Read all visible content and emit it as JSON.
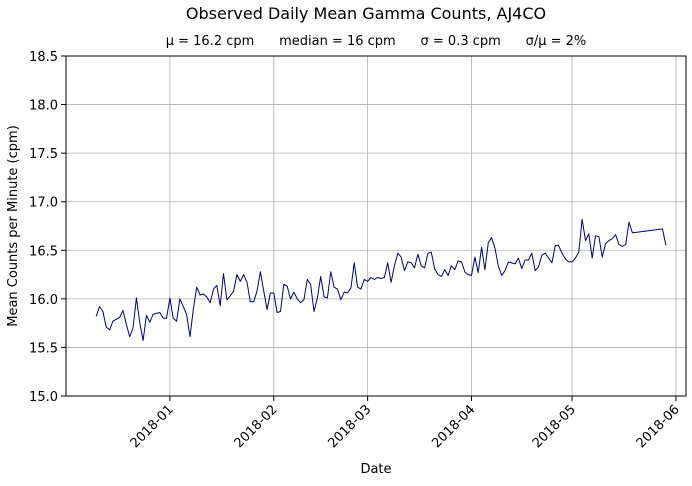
{
  "chart_data": {
    "type": "line",
    "title": "Observed Daily Mean Gamma Counts, AJ4CO",
    "subtitle": "μ = 16.2 cpm      median = 16 cpm      σ = 0.3 cpm      σ/μ = 2%",
    "xlabel": "Date",
    "ylabel": "Mean Counts per Minute (cpm)",
    "xlim": [
      "2017-12-01",
      "2018-06-04"
    ],
    "ylim": [
      15.0,
      18.5
    ],
    "x_ticks": [
      "2018-01",
      "2018-02",
      "2018-03",
      "2018-04",
      "2018-05",
      "2018-06"
    ],
    "y_ticks": [
      "15.0",
      "15.5",
      "16.0",
      "16.5",
      "17.0",
      "17.5",
      "18.0",
      "18.5"
    ],
    "grid": true,
    "legend": "none",
    "line_color": "#00007f",
    "series": [
      {
        "x": [
          "2017-12-10",
          "2017-12-11",
          "2017-12-12",
          "2017-12-13",
          "2017-12-14",
          "2017-12-15",
          "2017-12-16",
          "2017-12-17",
          "2017-12-18",
          "2017-12-19",
          "2017-12-20",
          "2017-12-21",
          "2017-12-22",
          "2017-12-23",
          "2017-12-24",
          "2017-12-25",
          "2017-12-26",
          "2017-12-27",
          "2017-12-28",
          "2017-12-29",
          "2017-12-30",
          "2017-12-31",
          "2018-01-01",
          "2018-01-02",
          "2018-01-03",
          "2018-01-04",
          "2018-01-05",
          "2018-01-06",
          "2018-01-07",
          "2018-01-08",
          "2018-01-09",
          "2018-01-10",
          "2018-01-11",
          "2018-01-12",
          "2018-01-13",
          "2018-01-14",
          "2018-01-15",
          "2018-01-16",
          "2018-01-17",
          "2018-01-18",
          "2018-01-19",
          "2018-01-20",
          "2018-01-21",
          "2018-01-22",
          "2018-01-23",
          "2018-01-24",
          "2018-01-25",
          "2018-01-26",
          "2018-01-27",
          "2018-01-28",
          "2018-01-29",
          "2018-01-30",
          "2018-01-31",
          "2018-02-01",
          "2018-02-02",
          "2018-02-03",
          "2018-02-04",
          "2018-02-05",
          "2018-02-06",
          "2018-02-07",
          "2018-02-08",
          "2018-02-09",
          "2018-02-10",
          "2018-02-11",
          "2018-02-12",
          "2018-02-13",
          "2018-02-14",
          "2018-02-15",
          "2018-02-16",
          "2018-02-17",
          "2018-02-18",
          "2018-02-19",
          "2018-02-20",
          "2018-02-21",
          "2018-02-22",
          "2018-02-23",
          "2018-02-24",
          "2018-02-25",
          "2018-02-26",
          "2018-02-27",
          "2018-02-28",
          "2018-03-01",
          "2018-03-02",
          "2018-03-03",
          "2018-03-04",
          "2018-03-05",
          "2018-03-06",
          "2018-03-07",
          "2018-03-08",
          "2018-03-09",
          "2018-03-10",
          "2018-03-11",
          "2018-03-12",
          "2018-03-13",
          "2018-03-14",
          "2018-03-15",
          "2018-03-16",
          "2018-03-17",
          "2018-03-18",
          "2018-03-19",
          "2018-03-20",
          "2018-03-21",
          "2018-03-22",
          "2018-03-23",
          "2018-03-24",
          "2018-03-25",
          "2018-03-26",
          "2018-03-27",
          "2018-03-28",
          "2018-03-29",
          "2018-03-30",
          "2018-03-31",
          "2018-04-01",
          "2018-04-02",
          "2018-04-03",
          "2018-04-04",
          "2018-04-05",
          "2018-04-06",
          "2018-04-07",
          "2018-04-08",
          "2018-04-09",
          "2018-04-10",
          "2018-04-11",
          "2018-04-12",
          "2018-04-13",
          "2018-04-14",
          "2018-04-15",
          "2018-04-16",
          "2018-04-17",
          "2018-04-18",
          "2018-04-19",
          "2018-04-20",
          "2018-04-21",
          "2018-04-22",
          "2018-04-23",
          "2018-04-24",
          "2018-04-25",
          "2018-04-26",
          "2018-04-27",
          "2018-04-28",
          "2018-04-29",
          "2018-04-30",
          "2018-05-01",
          "2018-05-02",
          "2018-05-03",
          "2018-05-04",
          "2018-05-05",
          "2018-05-06",
          "2018-05-07",
          "2018-05-08",
          "2018-05-09",
          "2018-05-10",
          "2018-05-11",
          "2018-05-12",
          "2018-05-13",
          "2018-05-14",
          "2018-05-15",
          "2018-05-16",
          "2018-05-17",
          "2018-05-18",
          "2018-05-19",
          "2018-05-28",
          "2018-05-29"
        ],
        "values": [
          15.82,
          15.92,
          15.87,
          15.71,
          15.68,
          15.77,
          15.79,
          15.81,
          15.88,
          15.74,
          15.61,
          15.7,
          16.01,
          15.76,
          15.57,
          15.83,
          15.76,
          15.84,
          15.85,
          15.86,
          15.8,
          15.8,
          16.01,
          15.8,
          15.77,
          16.0,
          15.92,
          15.84,
          15.61,
          15.9,
          16.12,
          16.04,
          16.05,
          16.02,
          15.96,
          16.1,
          16.14,
          15.93,
          16.26,
          15.99,
          16.03,
          16.08,
          16.25,
          16.18,
          16.25,
          16.17,
          15.97,
          15.97,
          16.08,
          16.28,
          16.08,
          15.89,
          16.06,
          16.06,
          15.86,
          15.87,
          16.15,
          16.13,
          16.0,
          16.07,
          16.0,
          15.96,
          15.99,
          16.2,
          16.15,
          15.87,
          16.01,
          16.23,
          16.02,
          16.01,
          16.28,
          16.12,
          16.1,
          15.99,
          16.07,
          16.06,
          16.11,
          16.37,
          16.12,
          16.1,
          16.2,
          16.18,
          16.22,
          16.2,
          16.22,
          16.21,
          16.22,
          16.37,
          16.17,
          16.34,
          16.47,
          16.43,
          16.29,
          16.38,
          16.37,
          16.32,
          16.46,
          16.34,
          16.32,
          16.47,
          16.48,
          16.31,
          16.25,
          16.23,
          16.3,
          16.24,
          16.34,
          16.3,
          16.39,
          16.38,
          16.28,
          16.25,
          16.24,
          16.43,
          16.27,
          16.53,
          16.3,
          16.58,
          16.63,
          16.52,
          16.34,
          16.24,
          16.29,
          16.38,
          16.37,
          16.36,
          16.42,
          16.31,
          16.4,
          16.4,
          16.47,
          16.29,
          16.33,
          16.45,
          16.47,
          16.42,
          16.37,
          16.55,
          16.55,
          16.47,
          16.41,
          16.38,
          16.38,
          16.42,
          16.48,
          16.82,
          16.6,
          16.67,
          16.42,
          16.65,
          16.64,
          16.43,
          16.57,
          16.6,
          16.62,
          16.66,
          16.56,
          16.54,
          16.56,
          16.79,
          16.68,
          16.72,
          16.55
        ]
      }
    ]
  }
}
